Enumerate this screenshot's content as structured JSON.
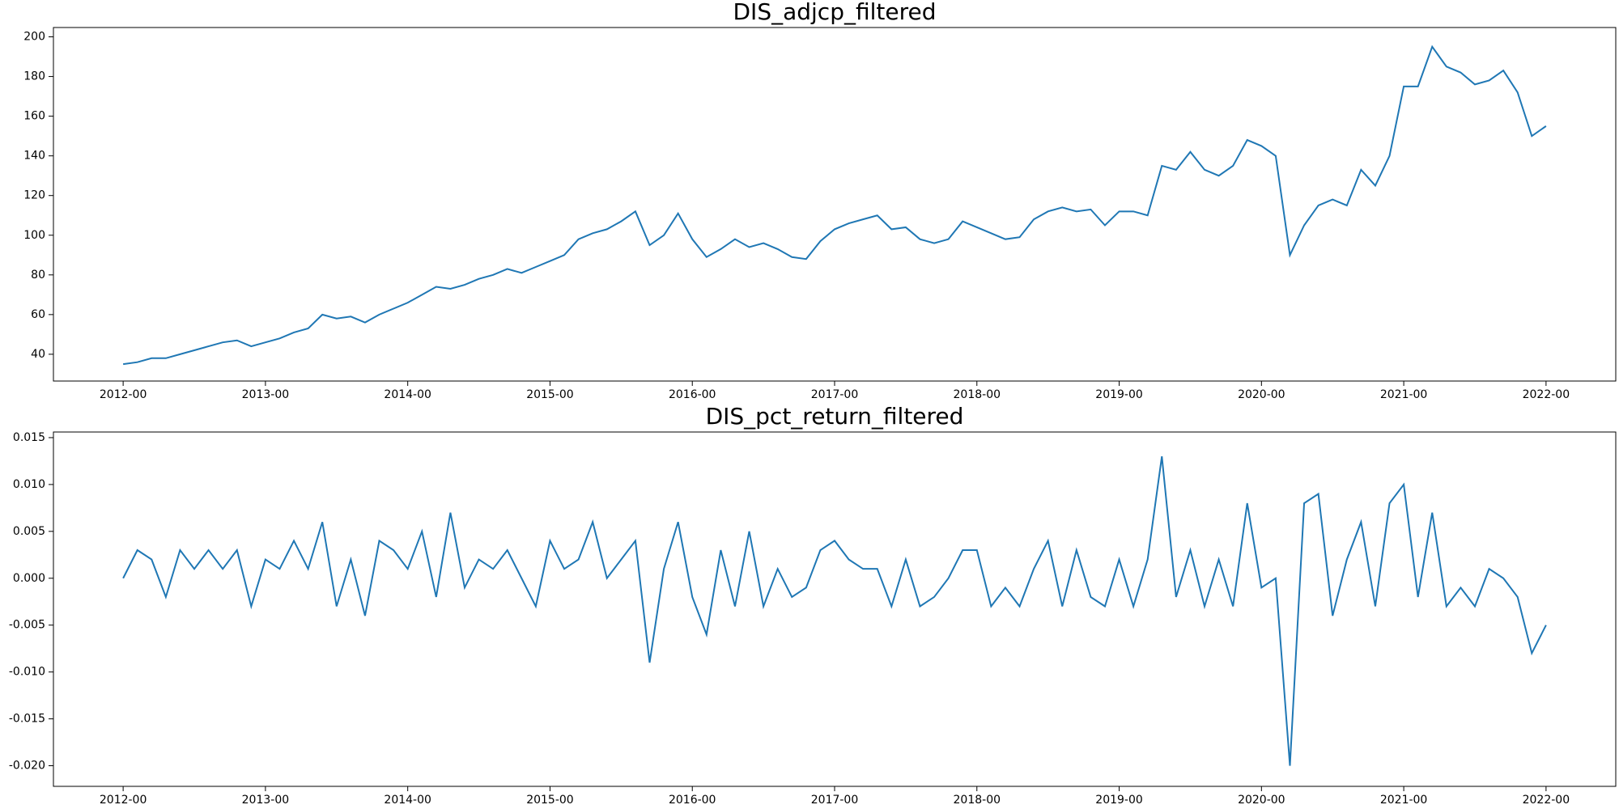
{
  "chart_data": [
    {
      "type": "line",
      "title": "DIS_adjcp_filtered",
      "color": "#1f77b4",
      "x": [
        2012.0,
        2012.1,
        2012.2,
        2012.3,
        2012.4,
        2012.5,
        2012.6,
        2012.7,
        2012.8,
        2012.9,
        2013.0,
        2013.1,
        2013.2,
        2013.3,
        2013.4,
        2013.5,
        2013.6,
        2013.7,
        2013.8,
        2013.9,
        2014.0,
        2014.1,
        2014.2,
        2014.3,
        2014.4,
        2014.5,
        2014.6,
        2014.7,
        2014.8,
        2014.9,
        2015.0,
        2015.1,
        2015.2,
        2015.3,
        2015.4,
        2015.5,
        2015.6,
        2015.7,
        2015.8,
        2015.9,
        2016.0,
        2016.1,
        2016.2,
        2016.3,
        2016.4,
        2016.5,
        2016.6,
        2016.7,
        2016.8,
        2016.9,
        2017.0,
        2017.1,
        2017.2,
        2017.3,
        2017.4,
        2017.5,
        2017.6,
        2017.7,
        2017.8,
        2017.9,
        2018.0,
        2018.1,
        2018.2,
        2018.3,
        2018.4,
        2018.5,
        2018.6,
        2018.7,
        2018.8,
        2018.9,
        2019.0,
        2019.1,
        2019.2,
        2019.3,
        2019.4,
        2019.5,
        2019.6,
        2019.7,
        2019.8,
        2019.9,
        2020.0,
        2020.1,
        2020.2,
        2020.3,
        2020.4,
        2020.5,
        2020.6,
        2020.7,
        2020.8,
        2020.9,
        2021.0,
        2021.1,
        2021.2,
        2021.3,
        2021.4,
        2021.5,
        2021.6,
        2021.7,
        2021.8,
        2021.9,
        2022.0
      ],
      "values": [
        35,
        36,
        38,
        38,
        40,
        42,
        44,
        46,
        47,
        44,
        46,
        48,
        51,
        53,
        60,
        58,
        59,
        56,
        60,
        63,
        66,
        70,
        74,
        73,
        75,
        78,
        80,
        83,
        81,
        84,
        87,
        90,
        98,
        101,
        103,
        107,
        112,
        95,
        100,
        111,
        98,
        89,
        93,
        98,
        94,
        96,
        93,
        89,
        88,
        97,
        103,
        106,
        108,
        110,
        103,
        104,
        98,
        96,
        98,
        107,
        104,
        101,
        98,
        99,
        108,
        112,
        114,
        112,
        113,
        105,
        112,
        112,
        110,
        135,
        133,
        142,
        133,
        130,
        135,
        148,
        145,
        140,
        90,
        105,
        115,
        118,
        115,
        133,
        125,
        140,
        175,
        175,
        195,
        185,
        182,
        176,
        178,
        183,
        172,
        150,
        155
      ],
      "xlim": [
        2011.51,
        2022.49
      ],
      "xticks": [
        {
          "value": 2012,
          "label": "2012-00"
        },
        {
          "value": 2013,
          "label": "2013-00"
        },
        {
          "value": 2014,
          "label": "2014-00"
        },
        {
          "value": 2015,
          "label": "2015-00"
        },
        {
          "value": 2016,
          "label": "2016-00"
        },
        {
          "value": 2017,
          "label": "2017-00"
        },
        {
          "value": 2018,
          "label": "2018-00"
        },
        {
          "value": 2019,
          "label": "2019-00"
        },
        {
          "value": 2020,
          "label": "2020-00"
        },
        {
          "value": 2021,
          "label": "2021-00"
        },
        {
          "value": 2022,
          "label": "2022-00"
        }
      ],
      "ylim": [
        26.5,
        204.7
      ],
      "yticks": [
        40,
        60,
        80,
        100,
        120,
        140,
        160,
        180,
        200
      ]
    },
    {
      "type": "line",
      "title": "DIS_pct_return_filtered",
      "color": "#1f77b4",
      "x": [
        2012.0,
        2012.1,
        2012.2,
        2012.3,
        2012.4,
        2012.5,
        2012.6,
        2012.7,
        2012.8,
        2012.9,
        2013.0,
        2013.1,
        2013.2,
        2013.3,
        2013.4,
        2013.5,
        2013.6,
        2013.7,
        2013.8,
        2013.9,
        2014.0,
        2014.1,
        2014.2,
        2014.3,
        2014.4,
        2014.5,
        2014.6,
        2014.7,
        2014.8,
        2014.9,
        2015.0,
        2015.1,
        2015.2,
        2015.3,
        2015.4,
        2015.5,
        2015.6,
        2015.7,
        2015.8,
        2015.9,
        2016.0,
        2016.1,
        2016.2,
        2016.3,
        2016.4,
        2016.5,
        2016.6,
        2016.7,
        2016.8,
        2016.9,
        2017.0,
        2017.1,
        2017.2,
        2017.3,
        2017.4,
        2017.5,
        2017.6,
        2017.7,
        2017.8,
        2017.9,
        2018.0,
        2018.1,
        2018.2,
        2018.3,
        2018.4,
        2018.5,
        2018.6,
        2018.7,
        2018.8,
        2018.9,
        2019.0,
        2019.1,
        2019.2,
        2019.3,
        2019.4,
        2019.5,
        2019.6,
        2019.7,
        2019.8,
        2019.9,
        2020.0,
        2020.1,
        2020.2,
        2020.3,
        2020.4,
        2020.5,
        2020.6,
        2020.7,
        2020.8,
        2020.9,
        2021.0,
        2021.1,
        2021.2,
        2021.3,
        2021.4,
        2021.5,
        2021.6,
        2021.7,
        2021.8,
        2021.9,
        2022.0
      ],
      "values": [
        0.0,
        0.003,
        0.002,
        -0.002,
        0.003,
        0.001,
        0.003,
        0.001,
        0.003,
        -0.003,
        0.002,
        0.001,
        0.004,
        0.001,
        0.006,
        -0.003,
        0.002,
        -0.004,
        0.004,
        0.003,
        0.001,
        0.005,
        -0.002,
        0.007,
        -0.001,
        0.002,
        0.001,
        0.003,
        0.0,
        -0.003,
        0.004,
        0.001,
        0.002,
        0.006,
        0.0,
        0.002,
        0.004,
        -0.009,
        0.001,
        0.006,
        -0.002,
        -0.006,
        0.003,
        -0.003,
        0.005,
        -0.003,
        0.001,
        -0.002,
        -0.001,
        0.003,
        0.004,
        0.002,
        0.001,
        0.001,
        -0.003,
        0.002,
        -0.003,
        -0.002,
        0.0,
        0.003,
        0.003,
        -0.003,
        -0.001,
        -0.003,
        0.001,
        0.004,
        -0.003,
        0.003,
        -0.002,
        -0.003,
        0.002,
        -0.003,
        0.002,
        0.013,
        -0.002,
        0.003,
        -0.003,
        0.002,
        -0.003,
        0.008,
        -0.001,
        0.0,
        -0.02,
        0.008,
        0.009,
        -0.004,
        0.002,
        0.006,
        -0.003,
        0.008,
        0.01,
        -0.002,
        0.007,
        -0.003,
        -0.001,
        -0.003,
        0.001,
        0.0,
        -0.002,
        -0.008,
        -0.005
      ],
      "xlim": [
        2011.51,
        2022.49
      ],
      "xticks": [
        {
          "value": 2012,
          "label": "2012-00"
        },
        {
          "value": 2013,
          "label": "2013-00"
        },
        {
          "value": 2014,
          "label": "2014-00"
        },
        {
          "value": 2015,
          "label": "2015-00"
        },
        {
          "value": 2016,
          "label": "2016-00"
        },
        {
          "value": 2017,
          "label": "2017-00"
        },
        {
          "value": 2018,
          "label": "2018-00"
        },
        {
          "value": 2019,
          "label": "2019-00"
        },
        {
          "value": 2020,
          "label": "2020-00"
        },
        {
          "value": 2021,
          "label": "2021-00"
        },
        {
          "value": 2022,
          "label": "2022-00"
        }
      ],
      "ylim": [
        -0.0222,
        0.0156
      ],
      "yticks": [
        0.015,
        {
          "value": 0.01,
          "label": "0.010"
        },
        0.005,
        {
          "value": 0,
          "label": "0.000"
        },
        -0.005,
        {
          "value": -0.01,
          "label": "-0.010"
        },
        -0.015,
        {
          "value": -0.02,
          "label": "-0.020"
        }
      ]
    }
  ]
}
